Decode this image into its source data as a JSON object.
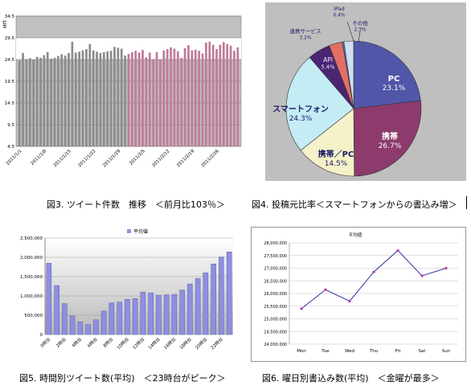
{
  "captions": {
    "fig3": "図3. ツイート件数　推移　＜前月比103％＞",
    "fig4": "図4. 投稿元比率＜スマートフォンからの書込み増＞",
    "fig5": "図5. 時間別ツイート数(平均)　＜23時台がピーク＞",
    "fig6": "図6. 曜日別書込み数(平均)　＜金曜が最多＞"
  },
  "chart_data": [
    {
      "id": "fig3",
      "type": "bar",
      "ylabel": "M件",
      "ylim": [
        4.5,
        34.5
      ],
      "yticks": [
        "34.5",
        "29.5",
        "24.5",
        "19.5",
        "14.5",
        "9.5",
        "4.5"
      ],
      "xticks": [
        "2011/1/1",
        "2011/1/8",
        "2011/1/15",
        "2011/1/22",
        "2011/1/29",
        "2011/2/5",
        "2011/2/12",
        "2011/2/19",
        "2011/2/26"
      ],
      "band": [
        24.5,
        29.5
      ],
      "colors": {
        "january": "#8c8c8c",
        "february": "#c07b9a",
        "background": "#c0c0c0",
        "band": "#ffffff"
      },
      "series": [
        {
          "values": [
            24.2,
            26.0,
            24.6,
            24.8,
            24.5,
            25.1,
            24.9,
            25.5,
            26.2,
            24.7,
            24.9,
            25.3,
            25.7,
            25.4,
            26.0,
            28.6,
            26.1,
            26.3,
            26.6,
            26.9,
            28.1,
            26.6,
            26.3,
            26.0,
            26.2,
            26.4,
            26.5,
            27.4,
            27.2,
            27.0,
            25.4
          ]
        },
        {
          "values": [
            25.8,
            26.2,
            26.5,
            26.1,
            26.7,
            25.0,
            26.1,
            24.6,
            26.2,
            24.5,
            26.6,
            26.9,
            27.3,
            27.0,
            26.4,
            24.9,
            27.1,
            27.8,
            26.6,
            26.8,
            26.5,
            25.9,
            28.4,
            28.6,
            27.9,
            26.9,
            27.9,
            28.5,
            28.1,
            27.7,
            26.5,
            27.3
          ]
        }
      ]
    },
    {
      "id": "fig4",
      "type": "pie",
      "slices": [
        {
          "label": "PC",
          "percent": "23.1%",
          "value": 23.1,
          "color": "#5256a8",
          "text_color": "#ffffff"
        },
        {
          "label": "携帯",
          "percent": "26.7%",
          "value": 26.7,
          "color": "#8c3b6c",
          "text_color": "#ffffff"
        },
        {
          "label": "携帯／PC",
          "percent": "14.5%",
          "value": 14.5,
          "color": "#f5f1c8",
          "text_color": "#1a1a6a"
        },
        {
          "label": "スマートフォン",
          "percent": "24.3%",
          "value": 24.3,
          "color": "#c4ecf5",
          "text_color": "#1a1a6a"
        },
        {
          "label": "API",
          "percent": "5.4%",
          "value": 5.4,
          "color": "#4a2572",
          "text_color": "#e8e8ff"
        },
        {
          "label": "連携サービス",
          "percent": "3.2%",
          "value": 3.2,
          "color": "#e46e66",
          "text_color": "#1a1a6a"
        },
        {
          "label": "iPad",
          "percent": "0.4%",
          "value": 0.4,
          "color": "#3a78c0",
          "text_color": "#1a1a6a"
        },
        {
          "label": "その他",
          "percent": "2.3%",
          "value": 2.3,
          "color": "#d0dcf0",
          "text_color": "#1a1a6a"
        }
      ],
      "colors": {
        "background": "#bfbfbf"
      }
    },
    {
      "id": "fig5",
      "type": "bar",
      "legend": "平均値",
      "legend_position": "top-center",
      "ylim": [
        0,
        2500000
      ],
      "yticks": [
        "2,500,000",
        "2,000,000",
        "1,500,000",
        "1,000,000",
        "500,000",
        "0"
      ],
      "xticks": [
        "0時台",
        "2時台",
        "4時台",
        "6時台",
        "8時台",
        "10時台",
        "12時台",
        "14時台",
        "16時台",
        "18時台",
        "20時台",
        "22時台"
      ],
      "colors": {
        "bar": "#8f8fe0",
        "bar_edge": "#4b4ba8",
        "background_top": "#ffffff",
        "background_bottom": "#b8b8b8"
      },
      "series": [
        {
          "name": "平均値",
          "values": [
            1850000,
            1270000,
            800000,
            480000,
            330000,
            260000,
            380000,
            610000,
            820000,
            840000,
            910000,
            930000,
            1100000,
            1080000,
            1020000,
            1030000,
            1040000,
            1150000,
            1310000,
            1450000,
            1600000,
            1830000,
            2010000,
            2140000
          ]
        }
      ]
    },
    {
      "id": "fig6",
      "type": "line",
      "title": "平均値",
      "ylim": [
        24000000,
        28000000
      ],
      "yticks": [
        "28,000,000",
        "27,500,000",
        "27,000,000",
        "26,500,000",
        "26,000,000",
        "25,500,000",
        "25,000,000",
        "24,500,000",
        "24,000,000"
      ],
      "categories": [
        "Mon",
        "Tue",
        "Wed",
        "Thu",
        "Fri",
        "Sat",
        "Sun"
      ],
      "colors": {
        "line": "#2e2ea0",
        "marker": "#c03aa0"
      },
      "series": [
        {
          "name": "平均値",
          "values": [
            25400000,
            26150000,
            25700000,
            26850000,
            27700000,
            26700000,
            27000000
          ]
        }
      ]
    }
  ]
}
